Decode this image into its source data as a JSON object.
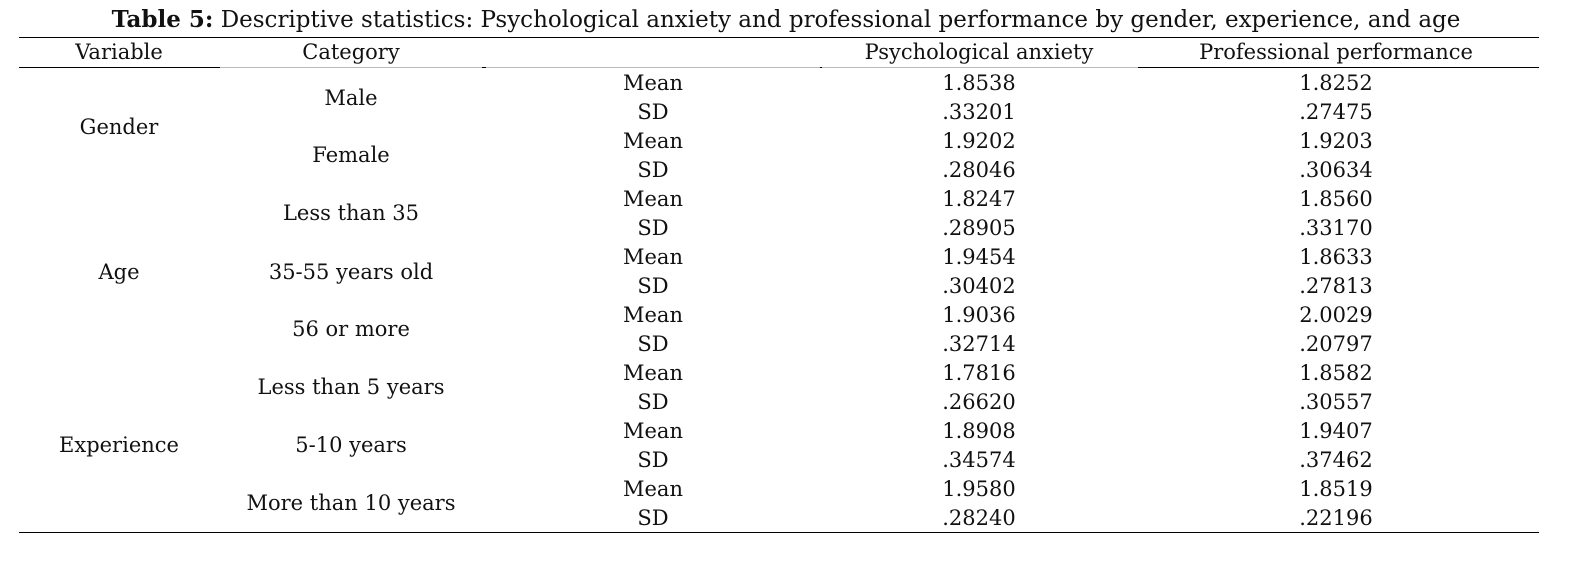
{
  "caption": {
    "label": "Table 5:",
    "text": " Descriptive statistics: Psychological anxiety and professional performance by gender, experience, and age"
  },
  "headers": {
    "variable": "Variable",
    "category": "Category",
    "statistic": "",
    "anxiety": "Psychological anxiety",
    "performance": "Professional performance"
  },
  "variables": {
    "gender": "Gender",
    "age": "Age",
    "experience": "Experience"
  },
  "categories": {
    "male": "Male",
    "female": "Female",
    "less35": "Less than 35",
    "age35_55": "35-55 years old",
    "age56": "56 or more",
    "less5": "Less than 5 years",
    "exp5_10": "5-10 years",
    "more10": "More than 10 years"
  },
  "rows": [
    {
      "stat": "Mean",
      "anxiety": "1.8538",
      "performance": "1.8252"
    },
    {
      "stat": "SD",
      "anxiety": ".33201",
      "performance": ".27475"
    },
    {
      "stat": "Mean",
      "anxiety": "1.9202",
      "performance": "1.9203"
    },
    {
      "stat": "SD",
      "anxiety": ".28046",
      "performance": ".30634"
    },
    {
      "stat": "Mean",
      "anxiety": "1.8247",
      "performance": "1.8560"
    },
    {
      "stat": "SD",
      "anxiety": ".28905",
      "performance": ".33170"
    },
    {
      "stat": "Mean",
      "anxiety": "1.9454",
      "performance": "1.8633"
    },
    {
      "stat": "SD",
      "anxiety": ".30402",
      "performance": ".27813"
    },
    {
      "stat": "Mean",
      "anxiety": "1.9036",
      "performance": "2.0029"
    },
    {
      "stat": "SD",
      "anxiety": ".32714",
      "performance": ".20797"
    },
    {
      "stat": "Mean",
      "anxiety": "1.7816",
      "performance": "1.8582"
    },
    {
      "stat": "SD",
      "anxiety": ".26620",
      "performance": ".30557"
    },
    {
      "stat": "Mean",
      "anxiety": "1.8908",
      "performance": "1.9407"
    },
    {
      "stat": "SD",
      "anxiety": ".34574",
      "performance": ".37462"
    },
    {
      "stat": "Mean",
      "anxiety": "1.9580",
      "performance": "1.8519"
    },
    {
      "stat": "SD",
      "anxiety": ".28240",
      "performance": ".22196"
    }
  ]
}
